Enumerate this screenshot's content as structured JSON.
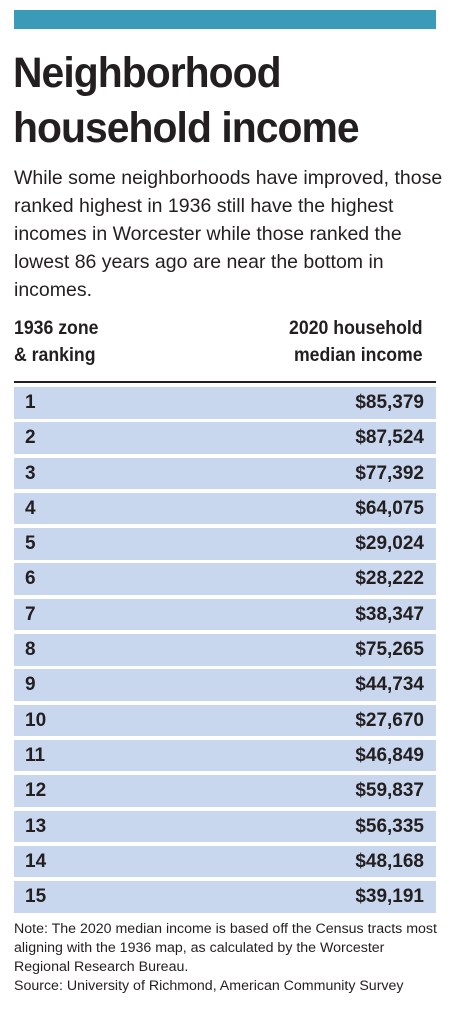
{
  "header": {
    "title_line1": "Neighborhood",
    "title_line2": "household income",
    "subtitle": "While some neighborhoods have improved, those ranked highest in 1936 still have the highest incomes in Worcester while those ranked the lowest 86 years ago are near the bottom in incomes."
  },
  "columns": {
    "left_line1": "1936 zone",
    "left_line2": "& ranking",
    "right_line1": "2020 household",
    "right_line2": "median income"
  },
  "rows": [
    {
      "zone": "1",
      "income": "$85,379"
    },
    {
      "zone": "2",
      "income": "$87,524"
    },
    {
      "zone": "3",
      "income": "$77,392"
    },
    {
      "zone": "4",
      "income": "$64,075"
    },
    {
      "zone": "5",
      "income": "$29,024"
    },
    {
      "zone": "6",
      "income": "$28,222"
    },
    {
      "zone": "7",
      "income": "$38,347"
    },
    {
      "zone": "8",
      "income": "$75,265"
    },
    {
      "zone": "9",
      "income": "$44,734"
    },
    {
      "zone": "10",
      "income": "$27,670"
    },
    {
      "zone": "11",
      "income": "$46,849"
    },
    {
      "zone": "12",
      "income": "$59,837"
    },
    {
      "zone": "13",
      "income": "$56,335"
    },
    {
      "zone": "14",
      "income": "$48,168"
    },
    {
      "zone": "15",
      "income": "$39,191"
    }
  ],
  "footer": {
    "note": "Note: The 2020 median income is based off the Census tracts most aligning with the 1936 map, as calculated by the Worcester Regional Research Bureau.",
    "source": "Source: University of Richmond, American Community Survey"
  },
  "colors": {
    "accent_bar": "#3a9bb8",
    "row_fill": "#c9d7ee",
    "text": "#231f20"
  }
}
